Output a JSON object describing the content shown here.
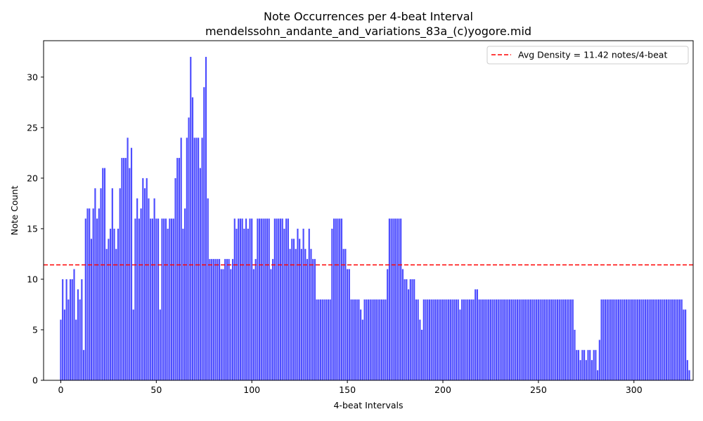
{
  "chart_data": {
    "type": "bar",
    "title": "Note Occurrences per 4-beat Interval",
    "subtitle": "mendelssohn_andante_and_variations_83a_(c)yogore.mid",
    "xlabel": "4-beat Intervals",
    "ylabel": "Note Count",
    "xlim": [
      -9,
      331
    ],
    "ylim": [
      0,
      33.6
    ],
    "xticks": [
      0,
      50,
      100,
      150,
      200,
      250,
      300
    ],
    "yticks": [
      0,
      5,
      10,
      15,
      20,
      25,
      30
    ],
    "bar_color": "#4d4dff",
    "grid": false,
    "legend": {
      "placement": "top-right",
      "entries": [
        {
          "label": "Avg Density = 11.42 notes/4-beat",
          "color": "#ff0000",
          "style": "dashed"
        }
      ]
    },
    "average_line": {
      "value": 11.42,
      "color": "#ff0000"
    },
    "values": [
      6,
      10,
      7,
      10,
      8,
      10,
      10,
      11,
      6,
      9,
      8,
      10,
      3,
      16,
      17,
      17,
      14,
      17,
      19,
      16,
      17,
      19,
      21,
      21,
      13,
      14,
      15,
      19,
      15,
      13,
      15,
      19,
      22,
      22,
      22,
      24,
      21,
      23,
      7,
      16,
      18,
      16,
      17,
      20,
      19,
      20,
      18,
      16,
      16,
      18,
      16,
      16,
      7,
      16,
      16,
      16,
      15,
      16,
      16,
      16,
      20,
      22,
      22,
      24,
      15,
      17,
      24,
      26,
      32,
      28,
      24,
      24,
      24,
      21,
      24,
      29,
      32,
      18,
      12,
      12,
      12,
      12,
      12,
      12,
      11,
      11,
      12,
      12,
      12,
      11,
      12,
      16,
      15,
      16,
      16,
      16,
      15,
      16,
      15,
      16,
      16,
      11,
      12,
      16,
      16,
      16,
      16,
      16,
      16,
      16,
      11,
      12,
      16,
      16,
      16,
      16,
      16,
      15,
      16,
      16,
      13,
      14,
      14,
      13,
      15,
      14,
      13,
      15,
      13,
      12,
      15,
      13,
      12,
      12,
      8,
      8,
      8,
      8,
      8,
      8,
      8,
      8,
      15,
      16,
      16,
      16,
      16,
      16,
      13,
      13,
      11,
      11,
      8,
      8,
      8,
      8,
      8,
      7,
      6,
      8,
      8,
      8,
      8,
      8,
      8,
      8,
      8,
      8,
      8,
      8,
      8,
      11,
      16,
      16,
      16,
      16,
      16,
      16,
      16,
      11,
      10,
      10,
      9,
      10,
      10,
      10,
      8,
      8,
      6,
      5,
      8,
      8,
      8,
      8,
      8,
      8,
      8,
      8,
      8,
      8,
      8,
      8,
      8,
      8,
      8,
      8,
      8,
      8,
      8,
      7,
      8,
      8,
      8,
      8,
      8,
      8,
      8,
      9,
      9,
      8,
      8,
      8,
      8,
      8,
      8,
      8,
      8,
      8,
      8,
      8,
      8,
      8,
      8,
      8,
      8,
      8,
      8,
      8,
      8,
      8,
      8,
      8,
      8,
      8,
      8,
      8,
      8,
      8,
      8,
      8,
      8,
      8,
      8,
      8,
      8,
      8,
      8,
      8,
      8,
      8,
      8,
      8,
      8,
      8,
      8,
      8,
      8,
      8,
      8,
      5,
      3,
      3,
      2,
      3,
      3,
      2,
      3,
      3,
      2,
      3,
      3,
      1,
      4,
      8,
      8,
      8,
      8,
      8,
      8,
      8,
      8,
      8,
      8,
      8,
      8,
      8,
      8,
      8,
      8,
      8,
      8,
      8,
      8,
      8,
      8,
      8,
      8,
      8,
      8,
      8,
      8,
      8,
      8,
      8,
      8,
      8,
      8,
      8,
      8,
      8,
      8,
      8,
      8,
      8,
      8,
      8,
      7,
      7,
      2,
      1
    ]
  }
}
